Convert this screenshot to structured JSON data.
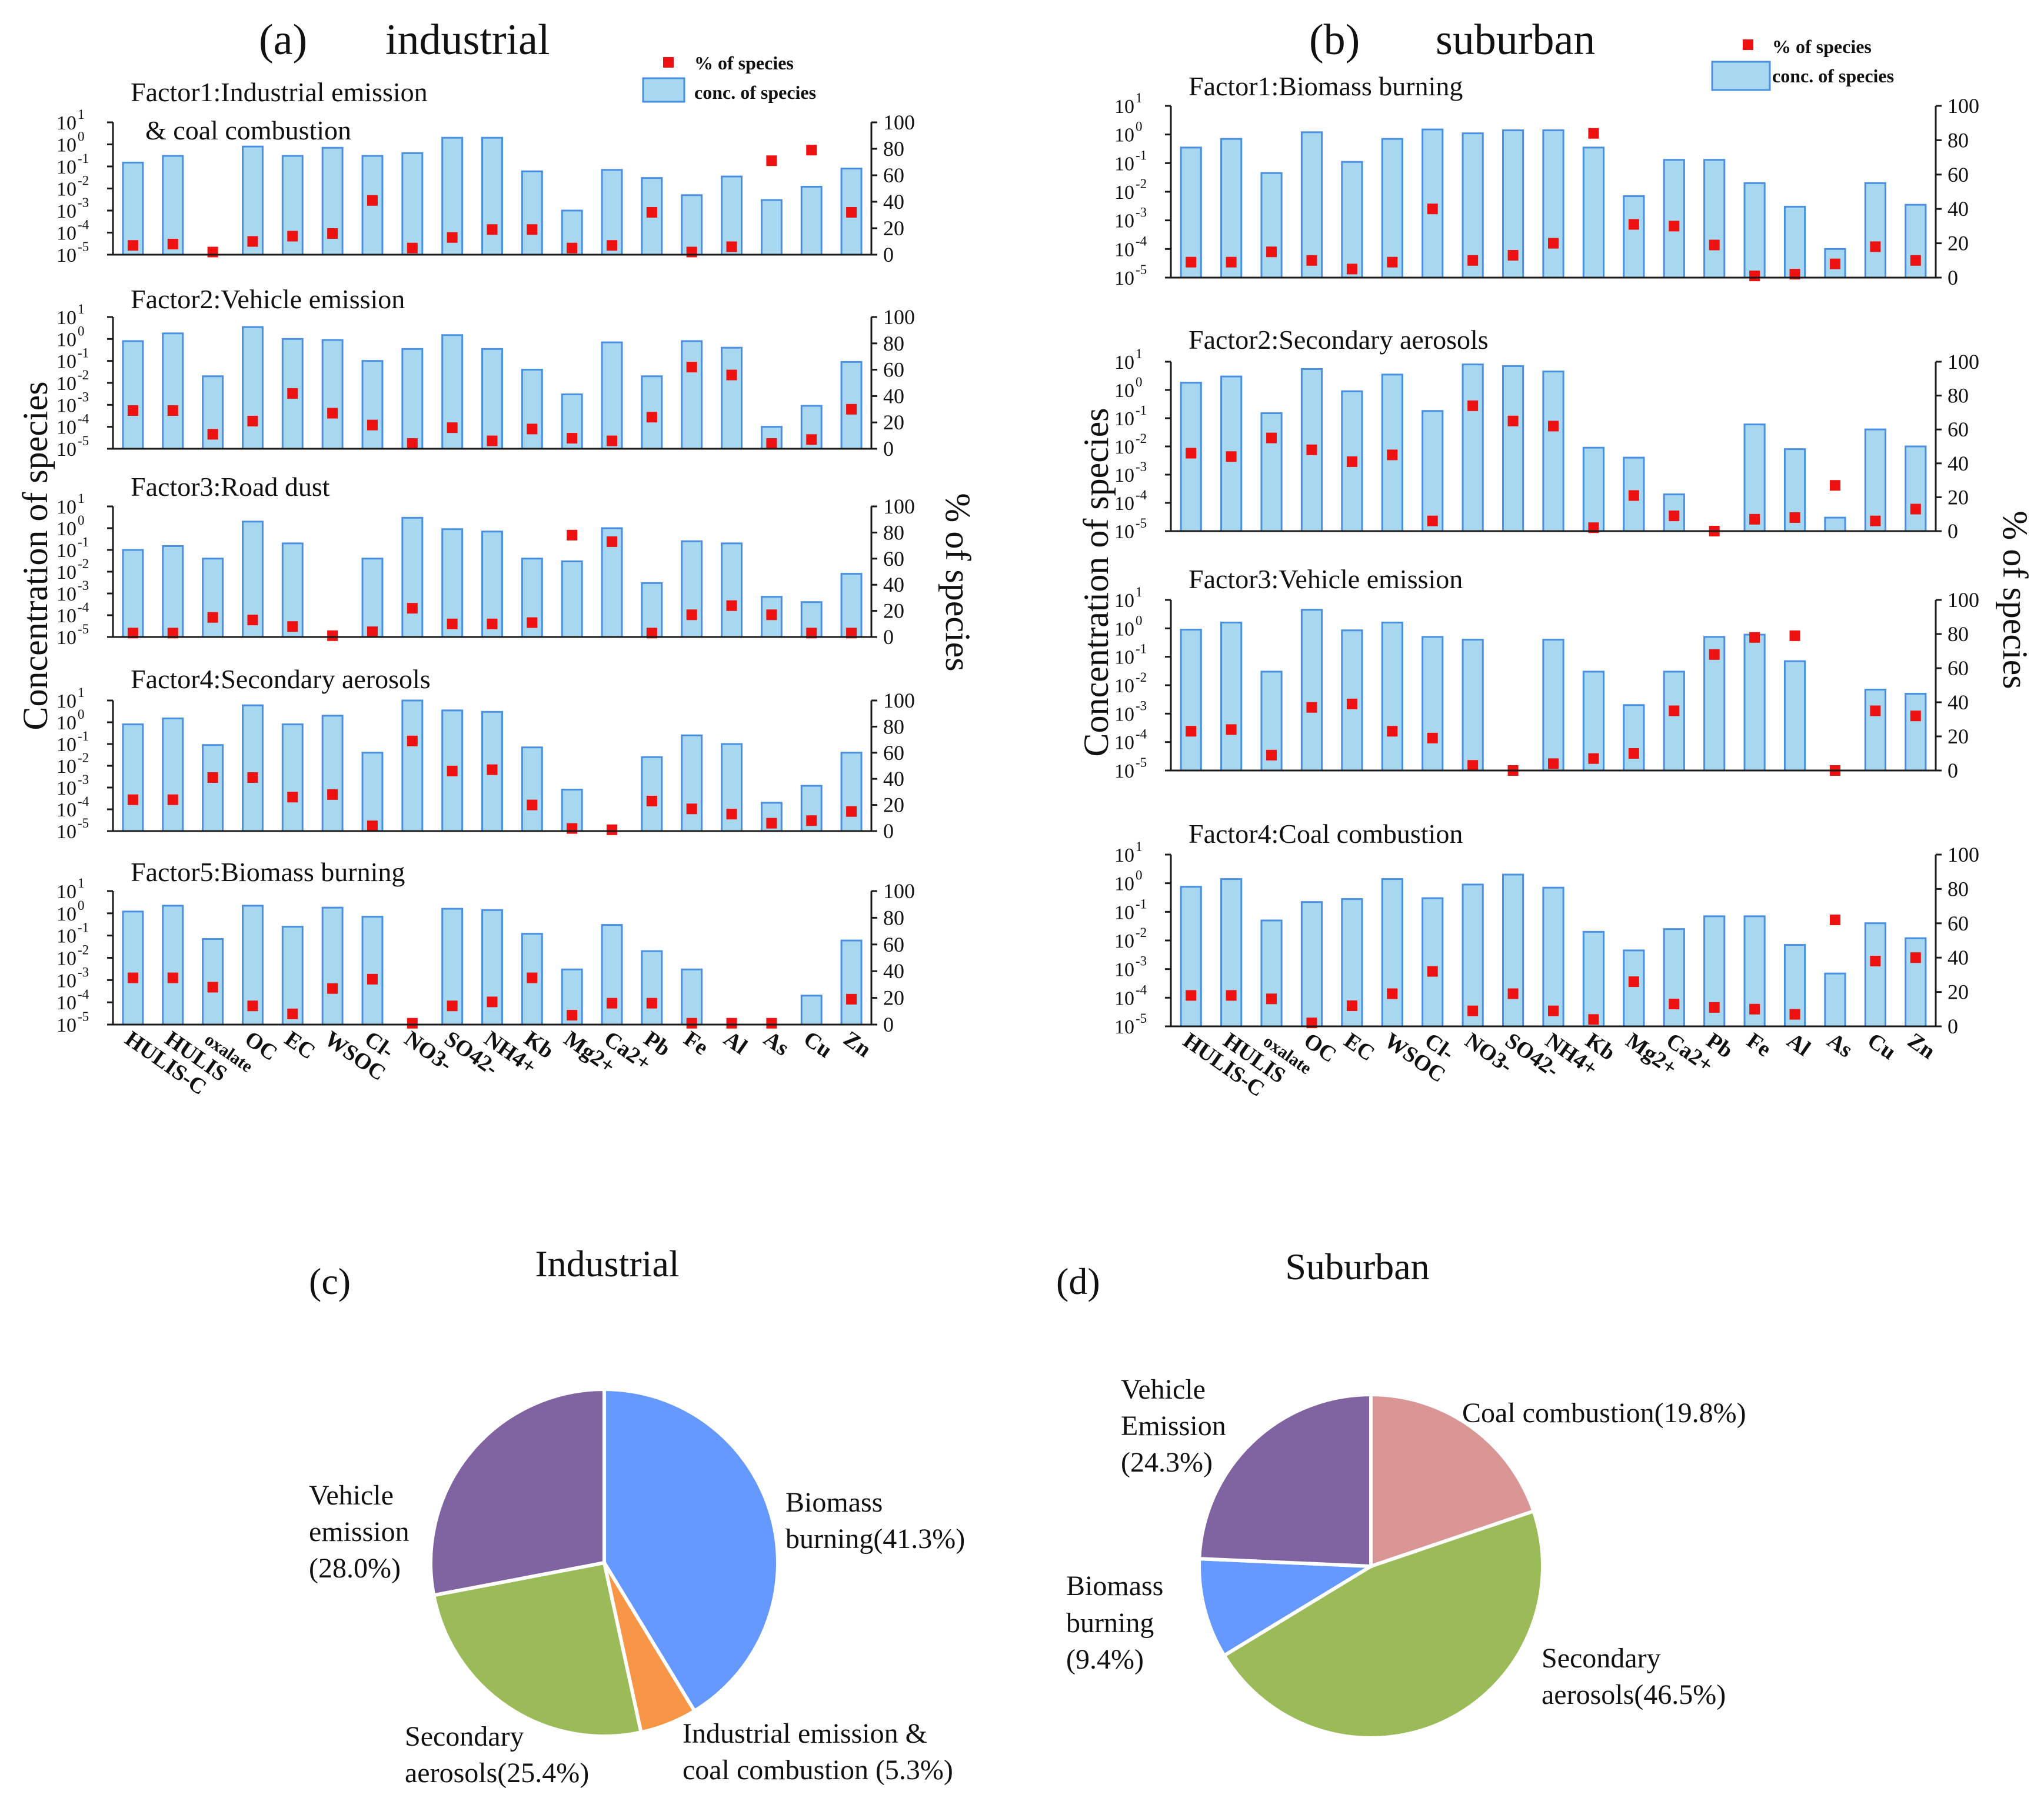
{
  "panels": {
    "a": {
      "label": "(a)",
      "title": "industrial"
    },
    "b": {
      "label": "(b)",
      "title": "suburban"
    },
    "c": {
      "label": "(c)",
      "title": "Industrial"
    },
    "d": {
      "label": "(d)",
      "title": "Suburban"
    }
  },
  "axes": {
    "ylabel_left": "Concentration of species",
    "ylabel_right": "% of species",
    "yticks_pct": [
      "0",
      "20",
      "40",
      "60",
      "80",
      "100"
    ],
    "yticks_log_exp": [
      "-5",
      "-4",
      "-3",
      "-2",
      "-1",
      "0",
      "1"
    ]
  },
  "legend": {
    "pct": "% of species",
    "conc": "conc. of species"
  },
  "colors": {
    "bar_fill": "#a8d8f0",
    "bar_stroke": "#4a90e2",
    "marker": "#ee1111",
    "purple": "#8064a2",
    "blue": "#6699ff",
    "green": "#9bbb59",
    "orange": "#f79646",
    "pink": "#d99694"
  },
  "chart_data": [
    {
      "type": "bar+scatter",
      "panel": "a",
      "title": "Factor1:Industrial emission & coal combustion",
      "yscale": "log",
      "ylim": [
        1e-05,
        10
      ],
      "y2lim": [
        0,
        100
      ],
      "categories": [
        "HULIS-C",
        "HULIS",
        "oxalate",
        "OC",
        "EC",
        "WSOC",
        "Cl-",
        "NO3-",
        "SO42-",
        "NH4+",
        "Kb",
        "Mg2+",
        "Ca2+",
        "Pb",
        "Fe",
        "Al",
        "As",
        "Cu",
        "Zn"
      ],
      "conc": [
        0.15,
        0.3,
        null,
        0.8,
        0.3,
        0.7,
        0.3,
        0.4,
        2,
        2,
        0.06,
        0.001,
        0.07,
        0.03,
        0.005,
        0.035,
        0.003,
        0.012,
        0.08
      ],
      "pct": [
        7,
        8,
        2,
        10,
        14,
        16,
        41,
        5,
        13,
        19,
        19,
        5,
        7,
        32,
        2,
        6,
        71,
        79,
        32
      ]
    },
    {
      "type": "bar+scatter",
      "panel": "a",
      "title": "Factor2:Vehicle emission",
      "yscale": "log",
      "ylim": [
        1e-05,
        10
      ],
      "y2lim": [
        0,
        100
      ],
      "categories": [
        "HULIS-C",
        "HULIS",
        "oxalate",
        "OC",
        "EC",
        "WSOC",
        "Cl-",
        "NO3-",
        "SO42-",
        "NH4+",
        "Kb",
        "Mg2+",
        "Ca2+",
        "Pb",
        "Fe",
        "Al",
        "As",
        "Cu",
        "Zn"
      ],
      "conc": [
        0.8,
        1.8,
        0.02,
        3.5,
        1,
        0.9,
        0.1,
        0.35,
        1.5,
        0.35,
        0.04,
        0.003,
        0.7,
        0.02,
        0.8,
        0.4,
        0.0001,
        0.0009,
        0.09
      ],
      "pct": [
        29,
        29,
        11,
        21,
        42,
        27,
        18,
        4,
        16,
        6,
        15,
        8,
        6,
        24,
        62,
        56,
        4,
        7,
        30
      ]
    },
    {
      "type": "bar+scatter",
      "panel": "a",
      "title": "Factor3:Road dust",
      "yscale": "log",
      "ylim": [
        1e-05,
        10
      ],
      "y2lim": [
        0,
        100
      ],
      "categories": [
        "HULIS-C",
        "HULIS",
        "oxalate",
        "OC",
        "EC",
        "WSOC",
        "Cl-",
        "NO3-",
        "SO42-",
        "NH4+",
        "Kb",
        "Mg2+",
        "Ca2+",
        "Pb",
        "Fe",
        "Al",
        "As",
        "Cu",
        "Zn"
      ],
      "conc": [
        0.1,
        0.15,
        0.04,
        2,
        0.2,
        null,
        0.04,
        3,
        0.9,
        0.7,
        0.04,
        0.03,
        1,
        0.003,
        0.25,
        0.2,
        0.0007,
        0.0004,
        0.008
      ],
      "pct": [
        3,
        3,
        15,
        13,
        8,
        1,
        4,
        22,
        10,
        10,
        11,
        78,
        73,
        3,
        17,
        24,
        17,
        3,
        3
      ]
    },
    {
      "type": "bar+scatter",
      "panel": "a",
      "title": "Factor4:Secondary aerosols",
      "yscale": "log",
      "ylim": [
        1e-05,
        10
      ],
      "y2lim": [
        0,
        100
      ],
      "categories": [
        "HULIS-C",
        "HULIS",
        "oxalate",
        "OC",
        "EC",
        "WSOC",
        "Cl-",
        "NO3-",
        "SO42-",
        "NH4+",
        "Kb",
        "Mg2+",
        "Ca2+",
        "Pb",
        "Fe",
        "Al",
        "As",
        "Cu",
        "Zn"
      ],
      "conc": [
        0.8,
        1.5,
        0.09,
        6,
        0.8,
        2,
        0.04,
        10,
        3.5,
        3,
        0.07,
        0.0008,
        null,
        0.025,
        0.25,
        0.1,
        0.0002,
        0.0012,
        0.04
      ],
      "pct": [
        24,
        24,
        41,
        41,
        26,
        28,
        4,
        69,
        46,
        47,
        20,
        2,
        1,
        23,
        17,
        13,
        6,
        8,
        15
      ]
    },
    {
      "type": "bar+scatter",
      "panel": "a",
      "title": "Factor5:Biomass burning",
      "yscale": "log",
      "ylim": [
        1e-05,
        10
      ],
      "y2lim": [
        0,
        100
      ],
      "categories": [
        "HULIS-C",
        "HULIS",
        "oxalate",
        "OC",
        "EC",
        "WSOC",
        "Cl-",
        "NO3-",
        "SO42-",
        "NH4+",
        "Kb",
        "Mg2+",
        "Ca2+",
        "Pb",
        "Fe",
        "Al",
        "As",
        "Cu",
        "Zn"
      ],
      "conc": [
        1.2,
        2.2,
        0.07,
        2.2,
        0.25,
        1.8,
        0.7,
        null,
        1.6,
        1.4,
        0.12,
        0.003,
        0.3,
        0.02,
        0.003,
        null,
        null,
        0.0002,
        0.06
      ],
      "pct": [
        35,
        35,
        28,
        14,
        8,
        27,
        34,
        1,
        14,
        17,
        35,
        7,
        16,
        16,
        1,
        1,
        1,
        null,
        19
      ]
    },
    {
      "type": "bar+scatter",
      "panel": "b",
      "title": "Factor1:Biomass burning",
      "yscale": "log",
      "ylim": [
        1e-05,
        10
      ],
      "y2lim": [
        0,
        100
      ],
      "categories": [
        "HULIS-C",
        "HULIS",
        "oxalate",
        "OC",
        "EC",
        "WSOC",
        "Cl-",
        "NO3-",
        "SO42-",
        "NH4+",
        "Kb",
        "Mg2+",
        "Ca2+",
        "Pb",
        "Fe",
        "Al",
        "As",
        "Cu",
        "Zn"
      ],
      "conc": [
        0.35,
        0.7,
        0.045,
        1.2,
        0.11,
        0.7,
        1.5,
        1.1,
        1.4,
        1.4,
        0.35,
        0.007,
        0.13,
        0.13,
        0.02,
        0.003,
        0.0001,
        0.02,
        0.0035
      ],
      "pct": [
        9,
        9,
        15,
        10,
        5,
        9,
        40,
        10,
        13,
        20,
        84,
        31,
        30,
        19,
        1,
        2,
        8,
        18,
        10
      ]
    },
    {
      "type": "bar+scatter",
      "panel": "b",
      "title": "Factor2:Secondary aerosols",
      "yscale": "log",
      "ylim": [
        1e-05,
        10
      ],
      "y2lim": [
        0,
        100
      ],
      "categories": [
        "HULIS-C",
        "HULIS",
        "oxalate",
        "OC",
        "EC",
        "WSOC",
        "Cl-",
        "NO3-",
        "SO42-",
        "NH4+",
        "Kb",
        "Mg2+",
        "Ca2+",
        "Pb",
        "Fe",
        "Al",
        "As",
        "Cu",
        "Zn"
      ],
      "conc": [
        1.8,
        3,
        0.15,
        5.5,
        0.9,
        3.5,
        0.18,
        8,
        7,
        4.5,
        0.009,
        0.004,
        0.0002,
        null,
        0.06,
        0.008,
        3e-05,
        0.04,
        0.01
      ],
      "pct": [
        46,
        44,
        55,
        48,
        41,
        45,
        6,
        74,
        65,
        62,
        2,
        21,
        9,
        0,
        7,
        8,
        27,
        6,
        13
      ]
    },
    {
      "type": "bar+scatter",
      "panel": "b",
      "title": "Factor3:Vehicle emission",
      "yscale": "log",
      "ylim": [
        1e-05,
        10
      ],
      "y2lim": [
        0,
        100
      ],
      "categories": [
        "HULIS-C",
        "HULIS",
        "oxalate",
        "OC",
        "EC",
        "WSOC",
        "Cl-",
        "NO3-",
        "SO42-",
        "NH4+",
        "Kb",
        "Mg2+",
        "Ca2+",
        "Pb",
        "Fe",
        "Al",
        "As",
        "Cu",
        "Zn"
      ],
      "conc": [
        0.9,
        1.6,
        0.03,
        4.5,
        0.85,
        1.6,
        0.5,
        0.4,
        null,
        0.4,
        0.03,
        0.002,
        0.03,
        0.5,
        0.6,
        0.07,
        null,
        0.007,
        0.005
      ],
      "pct": [
        23,
        24,
        9,
        37,
        39,
        23,
        19,
        3,
        0,
        4,
        7,
        10,
        35,
        68,
        78,
        79,
        0,
        35,
        32
      ]
    },
    {
      "type": "bar+scatter",
      "panel": "b",
      "title": "Factor4:Coal combustion",
      "yscale": "log",
      "ylim": [
        1e-05,
        10
      ],
      "y2lim": [
        0,
        100
      ],
      "categories": [
        "HULIS-C",
        "HULIS",
        "oxalate",
        "OC",
        "EC",
        "WSOC",
        "Cl-",
        "NO3-",
        "SO42-",
        "NH4+",
        "Kb",
        "Mg2+",
        "Ca2+",
        "Pb",
        "Fe",
        "Al",
        "As",
        "Cu",
        "Zn"
      ],
      "conc": [
        0.75,
        1.4,
        0.05,
        0.22,
        0.28,
        1.4,
        0.3,
        0.9,
        2,
        0.7,
        0.02,
        0.0045,
        0.025,
        0.07,
        0.07,
        0.007,
        0.0007,
        0.04,
        0.012
      ],
      "pct": [
        18,
        18,
        16,
        2,
        12,
        19,
        32,
        9,
        19,
        9,
        4,
        26,
        13,
        11,
        10,
        7,
        62,
        38,
        40
      ]
    },
    {
      "type": "pie",
      "panel": "c",
      "title": "Industrial",
      "slices": [
        {
          "label": "Biomass burning(41.3%)",
          "value": 41.3
        },
        {
          "label": "Industrial emission & coal combustion (5.3%)",
          "value": 5.3
        },
        {
          "label": "Secondary aerosols(25.4%)",
          "value": 25.4
        },
        {
          "label": "Vehicle emission (28.0%)",
          "value": 28.0
        }
      ]
    },
    {
      "type": "pie",
      "panel": "d",
      "title": "Suburban",
      "slices": [
        {
          "label": "Coal combustion(19.8%)",
          "value": 19.8
        },
        {
          "label": "Secondary aerosols(46.5%)",
          "value": 46.5
        },
        {
          "label": "Biomass burning (9.4%)",
          "value": 9.4
        },
        {
          "label": "Vehicle Emission (24.3%)",
          "value": 24.3
        }
      ]
    }
  ],
  "pie_labels": {
    "c": {
      "biomass": [
        "Biomass",
        "burning(41.3%)"
      ],
      "industrial": [
        "Industrial emission &",
        "coal combustion (5.3%)"
      ],
      "secondary": [
        "Secondary",
        "aerosols(25.4%)"
      ],
      "vehicle": [
        "Vehicle",
        "emission",
        "(28.0%)"
      ]
    },
    "d": {
      "coal": [
        "Coal combustion(19.8%)"
      ],
      "secondary": [
        "Secondary",
        "aerosols(46.5%)"
      ],
      "biomass": [
        "Biomass",
        "burning",
        "(9.4%)"
      ],
      "vehicle": [
        "Vehicle",
        "Emission",
        "(24.3%)"
      ]
    }
  }
}
